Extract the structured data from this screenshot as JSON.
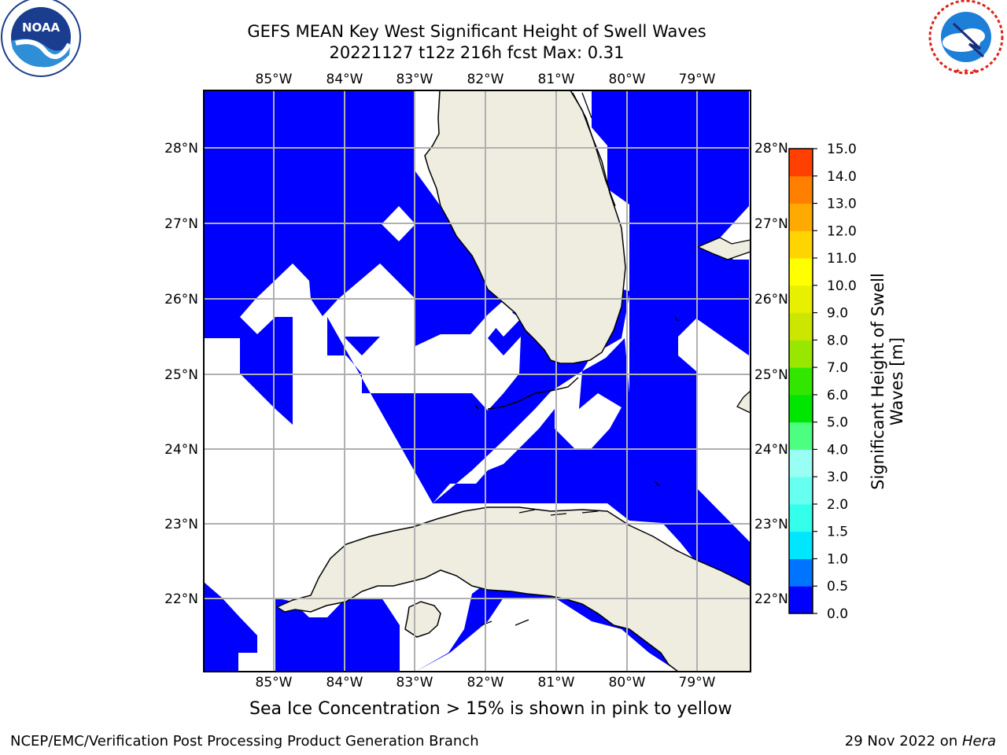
{
  "header": {
    "title_line1": "GEFS MEAN Key West Significant Height of Swell Waves",
    "title_line2": "20221127 t12z 216h fcst   Max: 0.31"
  },
  "logos": {
    "left": "noaa-logo",
    "left_text": "NOAA",
    "left_ring_text": "NATIONAL OCEANIC AND ATMOSPHERIC ADMINISTRATION · U.S. DEPARTMENT OF COMMERCE",
    "right": "national-weather-service-logo",
    "right_ring_text": "NATIONAL WEATHER SERVICE"
  },
  "map": {
    "lon_labels": [
      "85°W",
      "84°W",
      "83°W",
      "82°W",
      "81°W",
      "80°W",
      "79°W"
    ],
    "lat_labels": [
      "28°N",
      "27°N",
      "26°N",
      "25°N",
      "24°N",
      "23°N",
      "22°N"
    ],
    "extent": {
      "lon_min": -86.0,
      "lon_max": -78.25,
      "lat_min": 21.05,
      "lat_max": 28.77
    },
    "colors": {
      "ocean_fill": "#0000ff",
      "land": "#eeeddf",
      "no_data": "#ffffff",
      "grid": "#b0b0b0"
    }
  },
  "colorbar": {
    "label": "Significant Height of Swell Waves [m]",
    "ticks": [
      "0.0",
      "0.5",
      "1.0",
      "1.5",
      "2.0",
      "3.0",
      "4.0",
      "5.0",
      "6.0",
      "7.0",
      "8.0",
      "9.0",
      "10.0",
      "11.0",
      "12.0",
      "13.0",
      "14.0",
      "15.0"
    ],
    "colors": [
      "#0000ff",
      "#0073ff",
      "#00e6ff",
      "#33ffea",
      "#66fff0",
      "#99fff5",
      "#4dff80",
      "#00e600",
      "#33e600",
      "#99e600",
      "#cce600",
      "#e6f000",
      "#ffff00",
      "#ffd400",
      "#ffaa00",
      "#ff7f00",
      "#ff4000"
    ]
  },
  "footer": {
    "note": "Sea Ice Concentration > 15% is shown in pink to yellow",
    "credits": "NCEP/EMC/Verification Post Processing Product Generation Branch",
    "date": "29 Nov 2022 on ",
    "machine": "Hera"
  }
}
